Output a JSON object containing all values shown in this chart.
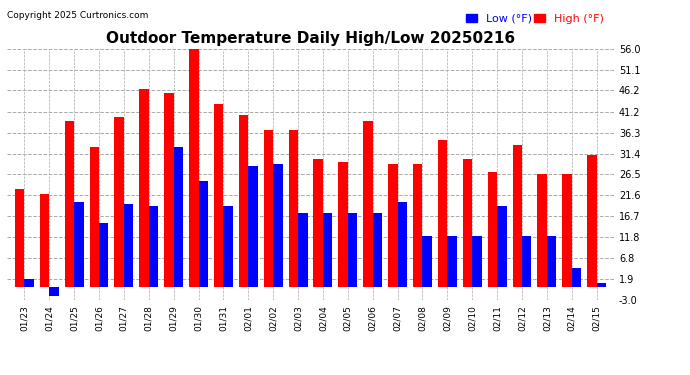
{
  "title": "Outdoor Temperature Daily High/Low 20250216",
  "copyright": "Copyright 2025 Curtronics.com",
  "legend_low": "Low (°F)",
  "legend_high": "High (°F)",
  "dates": [
    "01/23",
    "01/24",
    "01/25",
    "01/26",
    "01/27",
    "01/28",
    "01/29",
    "01/30",
    "01/31",
    "02/01",
    "02/02",
    "02/03",
    "02/04",
    "02/05",
    "02/06",
    "02/07",
    "02/08",
    "02/09",
    "02/10",
    "02/11",
    "02/12",
    "02/13",
    "02/14",
    "02/15"
  ],
  "highs": [
    23.0,
    22.0,
    39.0,
    33.0,
    40.0,
    46.5,
    45.5,
    56.0,
    43.0,
    40.5,
    37.0,
    37.0,
    30.0,
    29.5,
    39.0,
    29.0,
    29.0,
    34.5,
    30.0,
    27.0,
    33.5,
    26.5,
    26.5,
    31.0
  ],
  "lows": [
    1.9,
    -2.0,
    20.0,
    15.0,
    19.5,
    19.0,
    33.0,
    25.0,
    19.0,
    28.5,
    29.0,
    17.5,
    17.5,
    17.5,
    17.5,
    20.0,
    12.0,
    12.0,
    12.0,
    19.0,
    12.0,
    12.0,
    4.5,
    1.0
  ],
  "high_color": "#ff0000",
  "low_color": "#0000ff",
  "bg_color": "#ffffff",
  "grid_color": "#aaaaaa",
  "ylim": [
    -3.0,
    56.0
  ],
  "yticks": [
    -3.0,
    1.9,
    6.8,
    11.8,
    16.7,
    21.6,
    26.5,
    31.4,
    36.3,
    41.2,
    46.2,
    51.1,
    56.0
  ],
  "title_fontsize": 11,
  "bar_width": 0.38
}
